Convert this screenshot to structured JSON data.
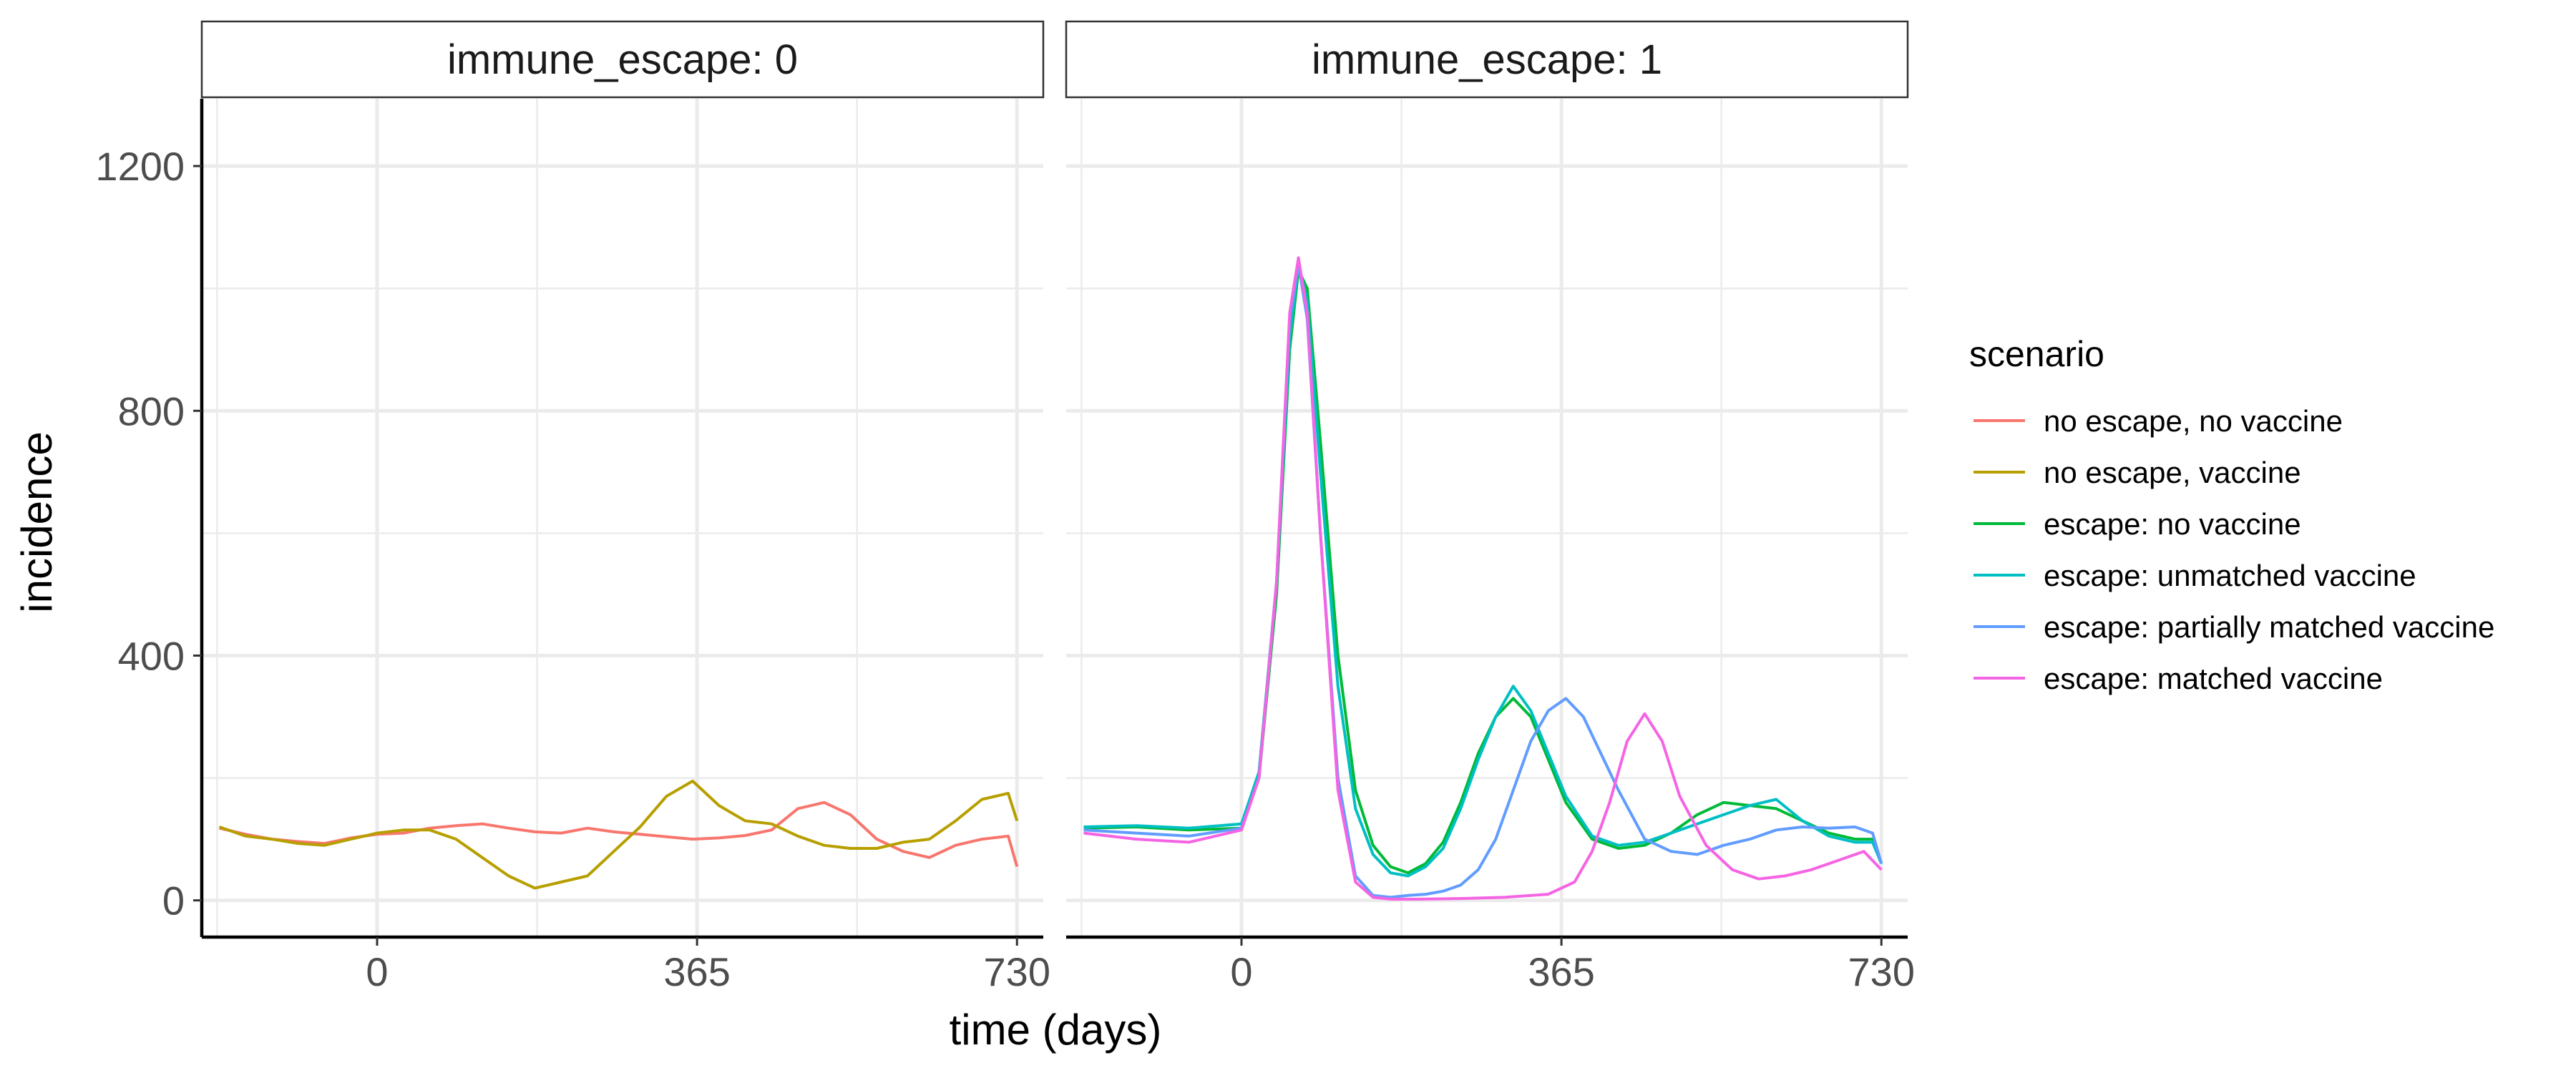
{
  "chart_data": {
    "type": "line",
    "xlabel": "time (days)",
    "ylabel": "incidence",
    "xlim": [
      -200,
      760
    ],
    "ylim": [
      -60,
      1310
    ],
    "x_ticks": [
      0,
      365,
      730
    ],
    "x_tick_labels": [
      "0",
      "365",
      "730"
    ],
    "y_ticks": [
      0,
      400,
      800,
      1200
    ],
    "y_tick_labels": [
      "0",
      "400",
      "800",
      "1200"
    ],
    "grid": true,
    "legend": {
      "title": "scenario",
      "position": "right",
      "entries": [
        {
          "label": "no escape, no vaccine",
          "color": "#F8766D"
        },
        {
          "label": "no escape, vaccine",
          "color": "#B79F00"
        },
        {
          "label": "escape: no vaccine",
          "color": "#00BA38"
        },
        {
          "label": "escape: unmatched vaccine",
          "color": "#00BFC4"
        },
        {
          "label": "escape: partially matched vaccine",
          "color": "#619CFF"
        },
        {
          "label": "escape: matched vaccine",
          "color": "#F564E3"
        }
      ]
    },
    "panels": [
      {
        "strip": "immune_escape: 0",
        "series": [
          {
            "name": "no escape, no vaccine",
            "color": "#F8766D",
            "x": [
              -180,
              -150,
              -120,
              -90,
              -60,
              -30,
              0,
              30,
              60,
              90,
              120,
              150,
              180,
              210,
              240,
              270,
              300,
              330,
              360,
              390,
              420,
              450,
              480,
              510,
              540,
              570,
              600,
              630,
              660,
              690,
              720,
              730
            ],
            "y": [
              118,
              108,
              100,
              96,
              93,
              102,
              108,
              110,
              118,
              122,
              125,
              118,
              112,
              110,
              118,
              112,
              108,
              104,
              100,
              102,
              106,
              115,
              150,
              160,
              140,
              100,
              80,
              70,
              90,
              100,
              105,
              55
            ]
          },
          {
            "name": "no escape, vaccine",
            "color": "#B79F00",
            "x": [
              -180,
              -150,
              -120,
              -90,
              -60,
              -30,
              0,
              30,
              60,
              90,
              120,
              150,
              180,
              210,
              240,
              270,
              300,
              330,
              360,
              390,
              420,
              450,
              480,
              510,
              540,
              570,
              600,
              630,
              660,
              690,
              720,
              730
            ],
            "y": [
              120,
              105,
              100,
              93,
              90,
              100,
              110,
              115,
              115,
              100,
              70,
              40,
              20,
              30,
              40,
              80,
              120,
              170,
              195,
              155,
              130,
              125,
              105,
              90,
              85,
              85,
              95,
              100,
              130,
              165,
              175,
              130
            ]
          }
        ]
      },
      {
        "strip": "immune_escape: 1",
        "series": [
          {
            "name": "escape: no vaccine",
            "color": "#00BA38",
            "x": [
              -180,
              -120,
              -60,
              0,
              20,
              40,
              55,
              65,
              75,
              90,
              110,
              130,
              150,
              170,
              190,
              210,
              230,
              250,
              270,
              290,
              310,
              330,
              350,
              370,
              400,
              430,
              460,
              490,
              520,
              550,
              580,
              610,
              640,
              670,
              700,
              720,
              730
            ],
            "y": [
              118,
              120,
              115,
              118,
              200,
              500,
              900,
              1030,
              1000,
              750,
              400,
              180,
              90,
              55,
              45,
              60,
              95,
              160,
              240,
              300,
              330,
              300,
              230,
              160,
              100,
              85,
              90,
              110,
              140,
              160,
              155,
              150,
              130,
              110,
              100,
              100,
              60
            ]
          },
          {
            "name": "escape: unmatched vaccine",
            "color": "#00BFC4",
            "x": [
              -180,
              -120,
              -60,
              0,
              20,
              40,
              55,
              65,
              75,
              90,
              110,
              130,
              150,
              170,
              190,
              210,
              230,
              250,
              270,
              290,
              310,
              330,
              350,
              370,
              400,
              430,
              460,
              490,
              520,
              550,
              580,
              610,
              640,
              670,
              700,
              720,
              730
            ],
            "y": [
              120,
              122,
              118,
              125,
              210,
              520,
              920,
              1040,
              980,
              700,
              350,
              150,
              75,
              45,
              40,
              55,
              85,
              150,
              230,
              300,
              350,
              310,
              240,
              170,
              105,
              90,
              95,
              110,
              125,
              140,
              155,
              165,
              130,
              105,
              95,
              95,
              60
            ]
          },
          {
            "name": "escape: partially matched vaccine",
            "color": "#619CFF",
            "x": [
              -180,
              -120,
              -60,
              0,
              20,
              40,
              55,
              65,
              75,
              90,
              110,
              130,
              150,
              170,
              190,
              210,
              230,
              250,
              270,
              290,
              310,
              330,
              350,
              370,
              390,
              410,
              430,
              460,
              490,
              520,
              550,
              580,
              610,
              640,
              670,
              700,
              720,
              730
            ],
            "y": [
              115,
              110,
              105,
              118,
              200,
              520,
              950,
              1040,
              950,
              600,
              200,
              40,
              8,
              5,
              8,
              10,
              15,
              25,
              50,
              100,
              180,
              260,
              310,
              330,
              300,
              240,
              180,
              100,
              80,
              75,
              90,
              100,
              115,
              120,
              118,
              120,
              110,
              60
            ]
          },
          {
            "name": "escape: matched vaccine",
            "color": "#F564E3",
            "x": [
              -180,
              -120,
              -60,
              0,
              20,
              40,
              55,
              65,
              75,
              90,
              110,
              130,
              150,
              170,
              200,
              250,
              300,
              350,
              380,
              400,
              420,
              440,
              460,
              480,
              500,
              530,
              560,
              590,
              620,
              650,
              680,
              710,
              730
            ],
            "y": [
              110,
              100,
              95,
              115,
              200,
              520,
              960,
              1050,
              960,
              600,
              180,
              30,
              5,
              2,
              2,
              3,
              5,
              10,
              30,
              80,
              160,
              260,
              305,
              260,
              170,
              90,
              50,
              35,
              40,
              50,
              65,
              80,
              50
            ]
          }
        ]
      }
    ]
  }
}
